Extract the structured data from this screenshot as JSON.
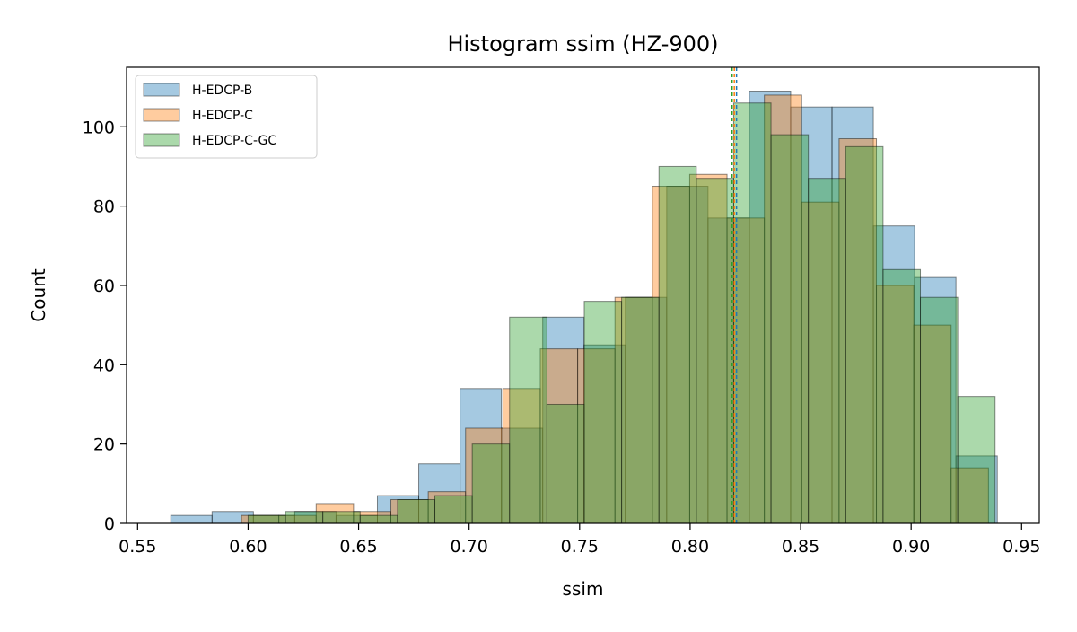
{
  "chart_data": {
    "type": "histogram",
    "title": "Histogram ssim (HZ-900)",
    "xlabel": "ssim",
    "ylabel": "Count",
    "xlim": [
      0.545,
      0.958
    ],
    "ylim": [
      0,
      115
    ],
    "x_ticks": [
      0.55,
      0.6,
      0.65,
      0.7,
      0.75,
      0.8,
      0.85,
      0.9,
      0.95
    ],
    "x_tick_labels": [
      "0.55",
      "0.60",
      "0.65",
      "0.70",
      "0.75",
      "0.80",
      "0.85",
      "0.90",
      "0.95"
    ],
    "y_ticks": [
      0,
      20,
      40,
      60,
      80,
      100
    ],
    "y_tick_labels": [
      "0",
      "20",
      "40",
      "60",
      "80",
      "100"
    ],
    "grid": false,
    "legend_position": "top-left",
    "series": [
      {
        "name": "H-EDCP-B",
        "color": "#1f77b4",
        "bin_edges": [
          0.565,
          0.5837,
          0.6024,
          0.6211,
          0.6398,
          0.6585,
          0.6772,
          0.6959,
          0.7146,
          0.7333,
          0.752,
          0.7707,
          0.7894,
          0.8081,
          0.8268,
          0.8455,
          0.8642,
          0.8829,
          0.9016,
          0.9203,
          0.939
        ],
        "counts": [
          2,
          3,
          2,
          3,
          2,
          7,
          15,
          34,
          24,
          52,
          45,
          57,
          85,
          77,
          109,
          105,
          105,
          75,
          62,
          17
        ],
        "mean": 0.821
      },
      {
        "name": "H-EDCP-C",
        "color": "#ff7f0e",
        "bin_edges": [
          0.597,
          0.6139,
          0.6308,
          0.6477,
          0.6646,
          0.6815,
          0.6984,
          0.7153,
          0.7322,
          0.7491,
          0.766,
          0.7829,
          0.7998,
          0.8167,
          0.8336,
          0.8505,
          0.8674,
          0.8843,
          0.9012,
          0.9181,
          0.935
        ],
        "counts": [
          2,
          2,
          5,
          3,
          6,
          8,
          24,
          34,
          44,
          44,
          57,
          85,
          88,
          77,
          108,
          81,
          97,
          60,
          50,
          14
        ],
        "mean": 0.82
      },
      {
        "name": "H-EDCP-C-GC",
        "color": "#2ca02c",
        "bin_edges": [
          0.6,
          0.6169,
          0.6338,
          0.6507,
          0.6676,
          0.6845,
          0.7014,
          0.7183,
          0.7352,
          0.7521,
          0.769,
          0.7859,
          0.8028,
          0.8197,
          0.8366,
          0.8535,
          0.8704,
          0.8873,
          0.9042,
          0.9211,
          0.938
        ],
        "counts": [
          2,
          3,
          3,
          2,
          6,
          7,
          20,
          52,
          30,
          56,
          57,
          90,
          87,
          106,
          98,
          87,
          95,
          64,
          57,
          32
        ],
        "mean": 0.819
      }
    ]
  }
}
